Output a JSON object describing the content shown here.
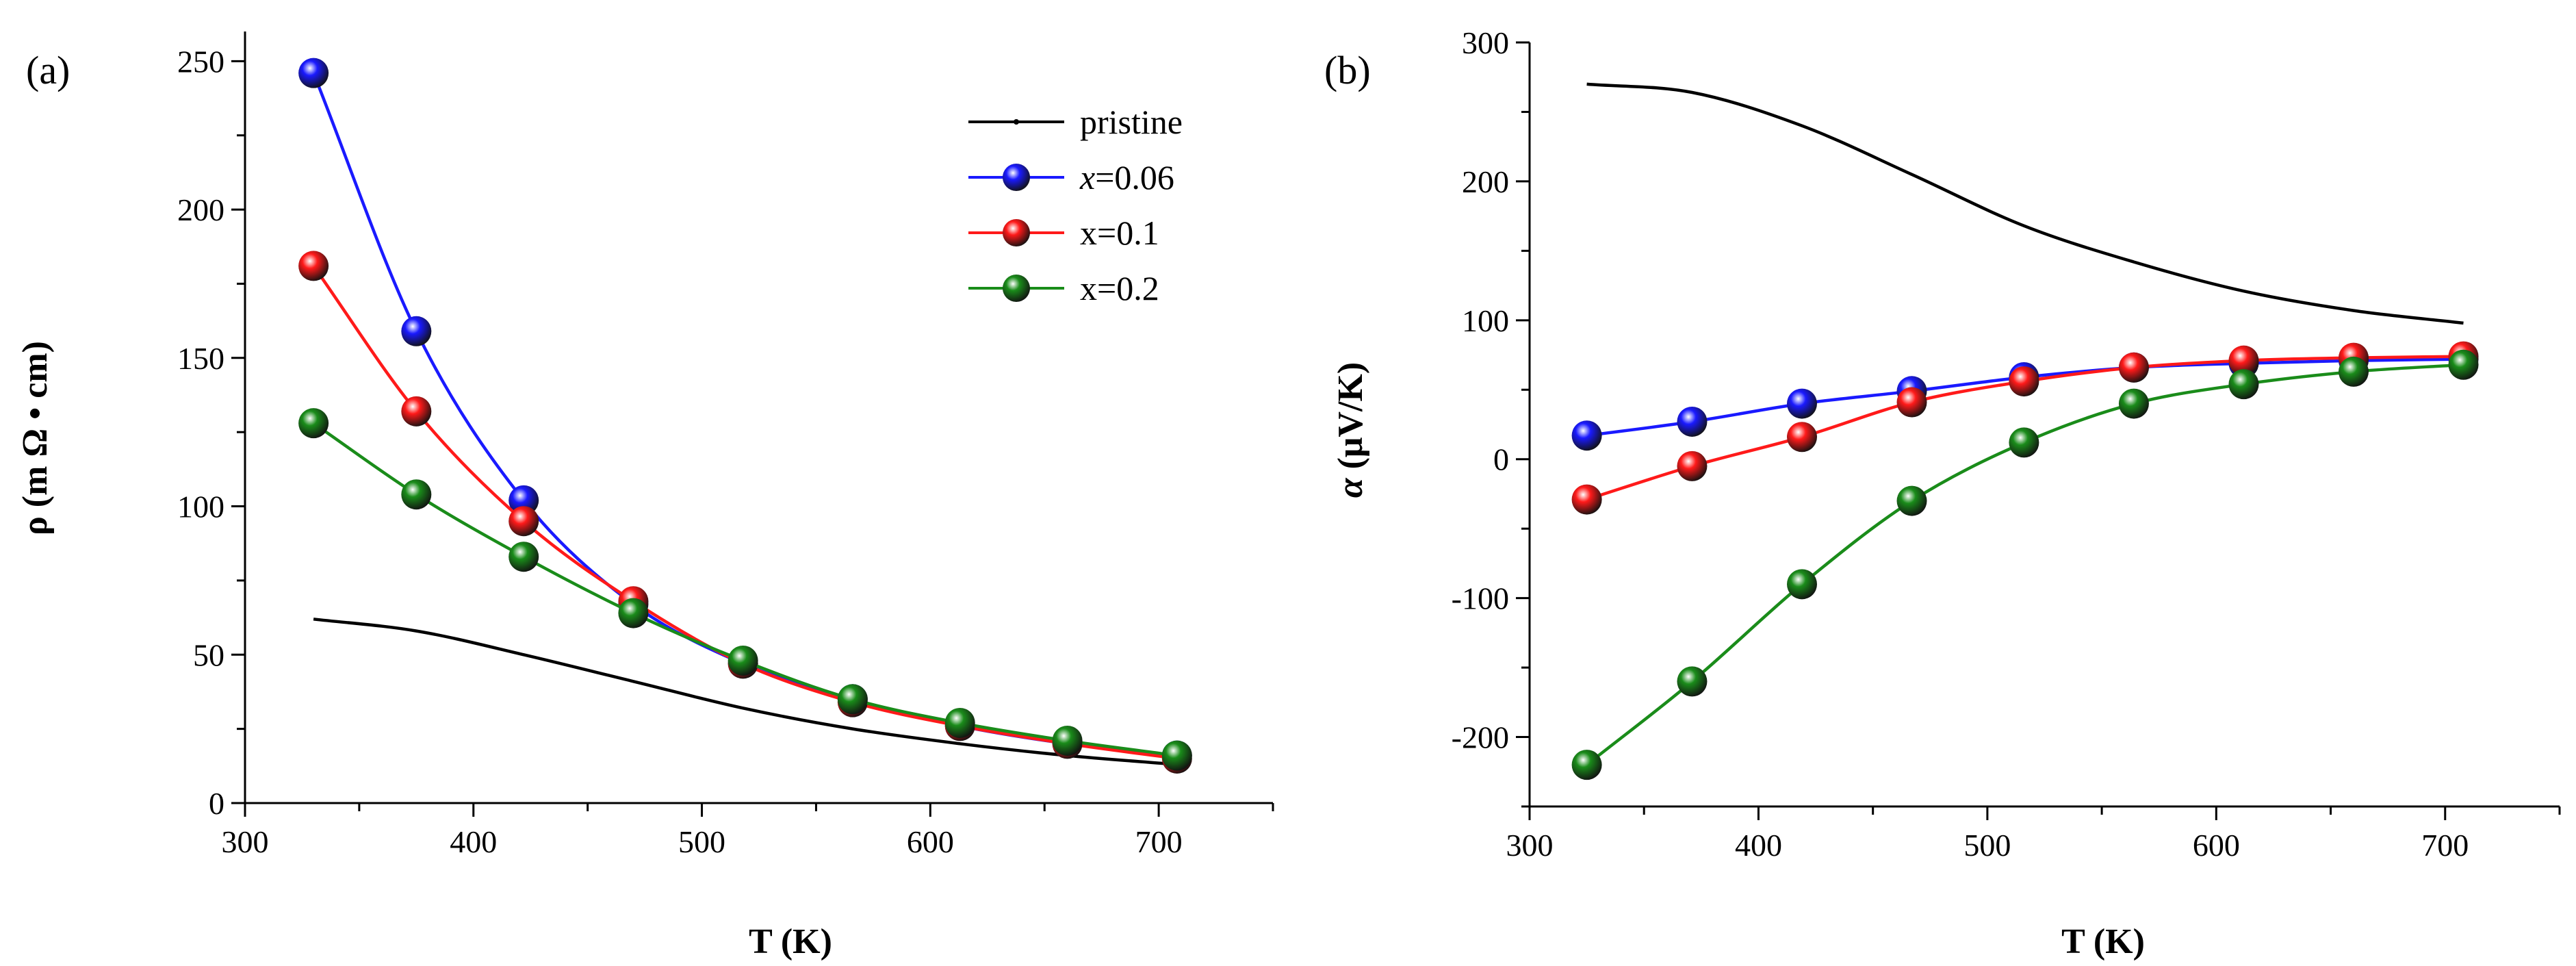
{
  "chart_data": [
    {
      "type": "line",
      "panel_label": "(a)",
      "xlabel": "T (K)",
      "ylabel": "ρ (m Ω • cm)",
      "xlim": [
        300,
        750
      ],
      "ylim": [
        0,
        260
      ],
      "xticks": [
        300,
        400,
        500,
        600,
        700
      ],
      "yticks": [
        0,
        50,
        100,
        150,
        200,
        250
      ],
      "legend_position": "top-right",
      "series": [
        {
          "name": "pristine",
          "legend_prefix": "",
          "legend_value": "pristine",
          "color": "#000000",
          "marker": "none",
          "x": [
            330,
            375,
            422,
            470,
            518,
            566,
            613,
            660,
            708
          ],
          "y": [
            62,
            58,
            50,
            41,
            32,
            25,
            20,
            16,
            13
          ]
        },
        {
          "name": "x=0.06",
          "legend_prefix": "x",
          "legend_value": "=0.06",
          "color": "#1a1aff",
          "marker": "sphere",
          "x": [
            330,
            375,
            422,
            470,
            518,
            566,
            613,
            660,
            708
          ],
          "y": [
            246,
            159,
            102,
            67,
            47,
            35,
            26,
            20,
            16
          ]
        },
        {
          "name": "x=0.1",
          "legend_prefix": "",
          "legend_value": "x=0.1",
          "color": "#ff1a1a",
          "marker": "sphere",
          "x": [
            330,
            375,
            422,
            470,
            518,
            566,
            613,
            660,
            708
          ],
          "y": [
            181,
            132,
            95,
            68,
            47,
            34,
            26,
            20,
            15
          ]
        },
        {
          "name": "x=0.2",
          "legend_prefix": "",
          "legend_value": "x=0.2",
          "color": "#1a8c1a",
          "marker": "sphere",
          "x": [
            330,
            375,
            422,
            470,
            518,
            566,
            613,
            660,
            708
          ],
          "y": [
            128,
            104,
            83,
            64,
            48,
            35,
            27,
            21,
            16
          ]
        }
      ]
    },
    {
      "type": "line",
      "panel_label": "(b)",
      "xlabel": "T (K)",
      "ylabel_symbol": "α",
      "ylabel_rest": " (μV/K)",
      "xlim": [
        300,
        750
      ],
      "ylim": [
        -250,
        300
      ],
      "xticks": [
        300,
        400,
        500,
        600,
        700
      ],
      "yticks": [
        -200,
        -100,
        0,
        100,
        200,
        300
      ],
      "series": [
        {
          "name": "pristine",
          "color": "#000000",
          "marker": "none",
          "x": [
            325,
            371,
            419,
            467,
            516,
            564,
            612,
            660,
            708
          ],
          "y": [
            270,
            264,
            240,
            205,
            168,
            142,
            121,
            107,
            98
          ]
        },
        {
          "name": "x=0.06",
          "color": "#1a1aff",
          "marker": "sphere",
          "x": [
            325,
            371,
            419,
            467,
            516,
            564,
            612,
            660,
            708
          ],
          "y": [
            17,
            27,
            40,
            49,
            59,
            66,
            69,
            71,
            72
          ]
        },
        {
          "name": "x=0.1",
          "color": "#ff1a1a",
          "marker": "sphere",
          "x": [
            325,
            371,
            419,
            467,
            516,
            564,
            612,
            660,
            708
          ],
          "y": [
            -29,
            -5,
            16,
            41,
            56,
            66,
            71,
            73,
            74
          ]
        },
        {
          "name": "x=0.2",
          "color": "#1a8c1a",
          "marker": "sphere",
          "x": [
            325,
            371,
            419,
            467,
            516,
            564,
            612,
            660,
            708
          ],
          "y": [
            -220,
            -160,
            -90,
            -30,
            12,
            40,
            54,
            63,
            68
          ]
        }
      ]
    }
  ]
}
